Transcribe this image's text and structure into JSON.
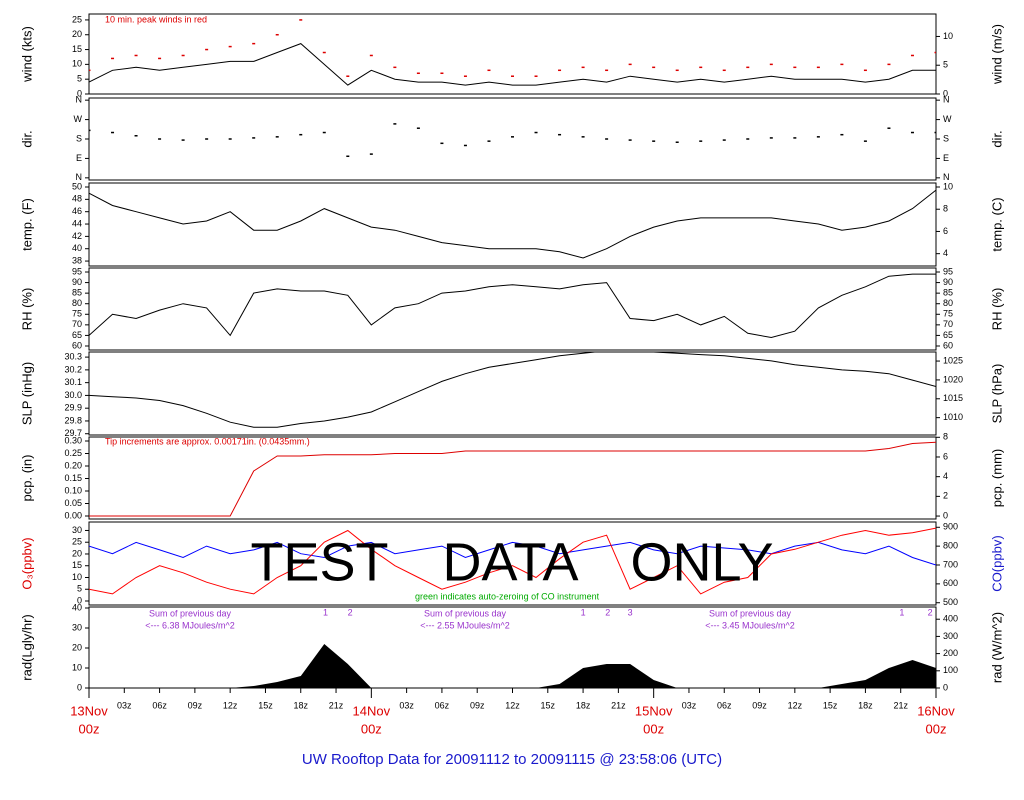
{
  "xlim": [
    0,
    72
  ],
  "x": [
    0,
    2,
    4,
    6,
    8,
    10,
    12,
    14,
    16,
    18,
    20,
    22,
    24,
    26,
    28,
    30,
    32,
    34,
    36,
    38,
    40,
    42,
    44,
    46,
    48,
    50,
    52,
    54,
    56,
    58,
    60,
    62,
    64,
    66,
    68,
    70,
    72
  ],
  "xticks": [
    {
      "value": 3,
      "label": "03z"
    },
    {
      "value": 6,
      "label": "06z"
    },
    {
      "value": 9,
      "label": "09z"
    },
    {
      "value": 12,
      "label": "12z"
    },
    {
      "value": 15,
      "label": "15z"
    },
    {
      "value": 18,
      "label": "18z"
    },
    {
      "value": 21,
      "label": "21z"
    },
    {
      "value": 27,
      "label": "03z"
    },
    {
      "value": 30,
      "label": "06z"
    },
    {
      "value": 33,
      "label": "09z"
    },
    {
      "value": 36,
      "label": "12z"
    },
    {
      "value": 39,
      "label": "15z"
    },
    {
      "value": 42,
      "label": "18z"
    },
    {
      "value": 45,
      "label": "21z"
    },
    {
      "value": 51,
      "label": "03z"
    },
    {
      "value": 54,
      "label": "06z"
    },
    {
      "value": 57,
      "label": "09z"
    },
    {
      "value": 60,
      "label": "12z"
    },
    {
      "value": 63,
      "label": "15z"
    },
    {
      "value": 66,
      "label": "18z"
    },
    {
      "value": 69,
      "label": "21z"
    }
  ],
  "day_ticks": [
    {
      "value": 0,
      "label": "13Nov",
      "sublabel": "00z"
    },
    {
      "value": 24,
      "label": "14Nov",
      "sublabel": "00z"
    },
    {
      "value": 48,
      "label": "15Nov",
      "sublabel": "00z"
    },
    {
      "value": 72,
      "label": "16Nov",
      "sublabel": "00z"
    }
  ],
  "day_tick_color": "#dd0000",
  "title": "UW Rooftop Data for 20091112  to  20091115 @ 23:58:06  (UTC)",
  "title_color": "#1a1acc",
  "watermark": "TEST DATA ONLY",
  "chart_data": [
    {
      "type": "line",
      "ylabel": "wind (kts)",
      "y2label": "wind (m/s)",
      "ylim": [
        0,
        27
      ],
      "yticks": [
        0,
        5,
        10,
        15,
        20,
        25
      ],
      "y2lim": [
        0,
        13.9
      ],
      "y2ticks": [
        0,
        5,
        10
      ],
      "annotations": [
        {
          "text": "10 min. peak winds in red",
          "color": "#dd0000"
        }
      ],
      "series": [
        {
          "name": "wind",
          "style": "line",
          "color": "#000000",
          "values": [
            4,
            8,
            9,
            8,
            9,
            10,
            11,
            11,
            14,
            17,
            10,
            3,
            8,
            5,
            4,
            4,
            3,
            4,
            3,
            3,
            4,
            5,
            4,
            6,
            5,
            4,
            5,
            4,
            5,
            6,
            5,
            5,
            5,
            4,
            5,
            8,
            8
          ]
        },
        {
          "name": "peak",
          "style": "dots",
          "color": "#dd0000",
          "values": [
            8,
            12,
            13,
            12,
            13,
            15,
            16,
            17,
            20,
            25,
            14,
            6,
            13,
            9,
            7,
            7,
            6,
            8,
            6,
            6,
            8,
            9,
            8,
            10,
            9,
            8,
            9,
            8,
            9,
            10,
            9,
            9,
            10,
            8,
            10,
            13,
            14
          ]
        }
      ]
    },
    {
      "type": "line",
      "ylabel": "dir.",
      "y2label": "dir.",
      "ylim": [
        -10,
        370
      ],
      "yticks": [
        {
          "value": 0,
          "label": "N"
        },
        {
          "value": 90,
          "label": "E"
        },
        {
          "value": 180,
          "label": "S"
        },
        {
          "value": 270,
          "label": "W"
        },
        {
          "value": 360,
          "label": "N"
        }
      ],
      "y2lim": [
        -10,
        370
      ],
      "y2ticks": [
        {
          "value": 0,
          "label": "N"
        },
        {
          "value": 90,
          "label": "E"
        },
        {
          "value": 180,
          "label": "S"
        },
        {
          "value": 270,
          "label": "W"
        },
        {
          "value": 360,
          "label": "N"
        }
      ],
      "series": [
        {
          "name": "dir",
          "style": "dots",
          "color": "#000000",
          "values": [
            220,
            210,
            195,
            180,
            175,
            180,
            180,
            185,
            190,
            200,
            210,
            100,
            110,
            250,
            230,
            160,
            150,
            170,
            190,
            210,
            200,
            190,
            180,
            175,
            170,
            165,
            170,
            175,
            180,
            185,
            185,
            190,
            200,
            170,
            230,
            210,
            210
          ]
        }
      ]
    },
    {
      "type": "line",
      "ylabel": "temp. (F)",
      "y2label": "temp. (C)",
      "ylim": [
        37.2,
        50.65
      ],
      "yticks": [
        38,
        40,
        42,
        44,
        46,
        48,
        50
      ],
      "y2lim": [
        2.89,
        10.36
      ],
      "y2ticks": [
        4,
        6,
        8,
        10
      ],
      "series": [
        {
          "name": "temp",
          "style": "line",
          "color": "#000000",
          "values": [
            49,
            47,
            46,
            45,
            44,
            44.5,
            46,
            43,
            43,
            44.5,
            46.5,
            45,
            43.5,
            43,
            42,
            41,
            40.5,
            40,
            40,
            40,
            39.5,
            38.5,
            40,
            42,
            43.5,
            44.5,
            45,
            45,
            45,
            45,
            44.5,
            44,
            43,
            43.5,
            44.5,
            46.5,
            49.5
          ]
        }
      ]
    },
    {
      "type": "line",
      "ylabel": "RH (%)",
      "y2label": "RH (%)",
      "ylim": [
        58.1,
        96.9
      ],
      "yticks": [
        60,
        65,
        70,
        75,
        80,
        85,
        90,
        95
      ],
      "y2lim": [
        58.1,
        96.9
      ],
      "y2ticks": [
        60,
        65,
        70,
        75,
        80,
        85,
        90,
        95
      ],
      "series": [
        {
          "name": "RH",
          "style": "line",
          "color": "#000000",
          "values": [
            65,
            75,
            73,
            77,
            80,
            78,
            65,
            85,
            87,
            86,
            86,
            84,
            70,
            78,
            80,
            85,
            86,
            88,
            89,
            88,
            87,
            89,
            90,
            73,
            72,
            75,
            70,
            74,
            66,
            64,
            67,
            78,
            84,
            88,
            93,
            94,
            94
          ]
        }
      ]
    },
    {
      "type": "line",
      "ylabel": "SLP (inHg)",
      "y2label": "SLP (hPa)",
      "ylim": [
        29.69,
        30.34
      ],
      "yticks": [
        {
          "value": 29.7,
          "label": "29.7"
        },
        {
          "value": 29.8,
          "label": "29.8"
        },
        {
          "value": 29.9,
          "label": "29.9"
        },
        {
          "value": 30.0,
          "label": "30.0"
        },
        {
          "value": 30.1,
          "label": "30.1"
        },
        {
          "value": 30.2,
          "label": "30.2"
        },
        {
          "value": 30.3,
          "label": "30.3"
        }
      ],
      "y2lim": [
        1005.4,
        1027.4
      ],
      "y2ticks": [
        1010,
        1015,
        1020,
        1025
      ],
      "series": [
        {
          "name": "SLP",
          "style": "line",
          "color": "#000000",
          "values": [
            30.0,
            29.99,
            29.98,
            29.96,
            29.92,
            29.86,
            29.79,
            29.75,
            29.75,
            29.78,
            29.8,
            29.83,
            29.87,
            29.95,
            30.03,
            30.11,
            30.17,
            30.22,
            30.25,
            30.28,
            30.31,
            30.33,
            30.35,
            30.35,
            30.34,
            30.33,
            30.32,
            30.31,
            30.29,
            30.27,
            30.24,
            30.22,
            30.2,
            30.19,
            30.17,
            30.12,
            30.07
          ]
        }
      ]
    },
    {
      "type": "line",
      "ylabel": "pcp. (in)",
      "y2label": "pcp. (mm)",
      "ylim": [
        -0.012,
        0.316
      ],
      "yticks": [
        {
          "value": 0,
          "label": "0.00"
        },
        {
          "value": 0.05,
          "label": "0.05"
        },
        {
          "value": 0.1,
          "label": "0.10"
        },
        {
          "value": 0.15,
          "label": "0.15"
        },
        {
          "value": 0.2,
          "label": "0.20"
        },
        {
          "value": 0.25,
          "label": "0.25"
        },
        {
          "value": 0.3,
          "label": "0.30"
        }
      ],
      "y2lim": [
        -0.3,
        8.03
      ],
      "y2ticks": [
        0,
        2,
        4,
        6,
        8
      ],
      "annotations": [
        {
          "text": "Tip increments are approx. 0.00171in. (0.0435mm.)",
          "color": "#dd0000"
        }
      ],
      "series": [
        {
          "name": "pcp",
          "style": "line",
          "color": "#dd0000",
          "values": [
            0,
            0,
            0,
            0,
            0,
            0,
            0,
            0.18,
            0.24,
            0.24,
            0.245,
            0.245,
            0.245,
            0.25,
            0.25,
            0.25,
            0.26,
            0.26,
            0.26,
            0.26,
            0.26,
            0.26,
            0.26,
            0.26,
            0.26,
            0.26,
            0.26,
            0.26,
            0.26,
            0.26,
            0.26,
            0.26,
            0.26,
            0.26,
            0.27,
            0.29,
            0.295
          ]
        }
      ]
    },
    {
      "type": "line",
      "ylabel": "O₃(ppbv)",
      "ylabel_color": "#dd0000",
      "y2label": "CO(ppbv)",
      "y2label_color": "#1a1acc",
      "ylim": [
        -1.7,
        33.6
      ],
      "yticks": [
        0,
        5,
        10,
        15,
        20,
        25,
        30
      ],
      "y2lim": [
        488,
        928
      ],
      "y2ticks": [
        500,
        600,
        700,
        800,
        900
      ],
      "annotations": [
        {
          "text": "green indicates auto-zeroing of CO instrument",
          "color": "#00aa00"
        }
      ],
      "series": [
        {
          "name": "CO",
          "style": "line",
          "color": "#0000ff",
          "axis": "y2",
          "values": [
            800,
            760,
            820,
            780,
            740,
            800,
            760,
            780,
            820,
            760,
            740,
            800,
            820,
            760,
            780,
            800,
            740,
            780,
            820,
            800,
            760,
            780,
            800,
            820,
            780,
            760,
            800,
            790,
            780,
            760,
            800,
            820,
            780,
            760,
            800,
            740,
            700
          ]
        },
        {
          "name": "O3",
          "style": "line",
          "color": "#ff0000",
          "values": [
            5,
            3,
            10,
            15,
            12,
            8,
            5,
            3,
            10,
            15,
            25,
            30,
            22,
            15,
            10,
            5,
            8,
            12,
            15,
            10,
            18,
            25,
            28,
            5,
            10,
            15,
            3,
            8,
            10,
            20,
            22,
            25,
            28,
            30,
            28,
            29,
            31
          ]
        }
      ]
    },
    {
      "type": "area",
      "ylabel": "rad(Lgly/hr)",
      "y2label": "rad (W/m^2)",
      "ylim": [
        0,
        40.5
      ],
      "yticks": [
        0,
        10,
        20,
        30,
        40
      ],
      "y2lim": [
        0,
        471
      ],
      "y2ticks": [
        0,
        100,
        200,
        300,
        400
      ],
      "day_sums": [
        {
          "label": "Sum of previous day",
          "note": "<--- 6.38 MJoules/m^2"
        },
        {
          "label": "Sum of previous day",
          "note": "<--- 2.55 MJoules/m^2"
        },
        {
          "label": "Sum of previous day",
          "note": "<--- 3.45 MJoules/m^2"
        }
      ],
      "markers": [
        {
          "value": 20.1,
          "label": "1"
        },
        {
          "value": 22.2,
          "label": "2"
        },
        {
          "value": 42,
          "label": "1"
        },
        {
          "value": 44.1,
          "label": "2"
        },
        {
          "value": 46,
          "label": "3"
        },
        {
          "value": 69.1,
          "label": "1"
        },
        {
          "value": 71.5,
          "label": "2"
        }
      ],
      "marker_color": "#9933cc",
      "series": [
        {
          "name": "rad",
          "style": "area",
          "color": "#000000",
          "values": [
            0,
            0,
            0,
            0,
            0,
            0,
            0,
            1,
            3,
            6,
            22,
            12,
            0,
            0,
            0,
            0,
            0,
            0,
            0,
            0,
            2,
            10,
            12,
            12,
            4,
            0,
            0,
            0,
            0,
            0,
            0,
            0,
            2,
            4,
            10,
            14,
            10
          ]
        }
      ]
    }
  ]
}
